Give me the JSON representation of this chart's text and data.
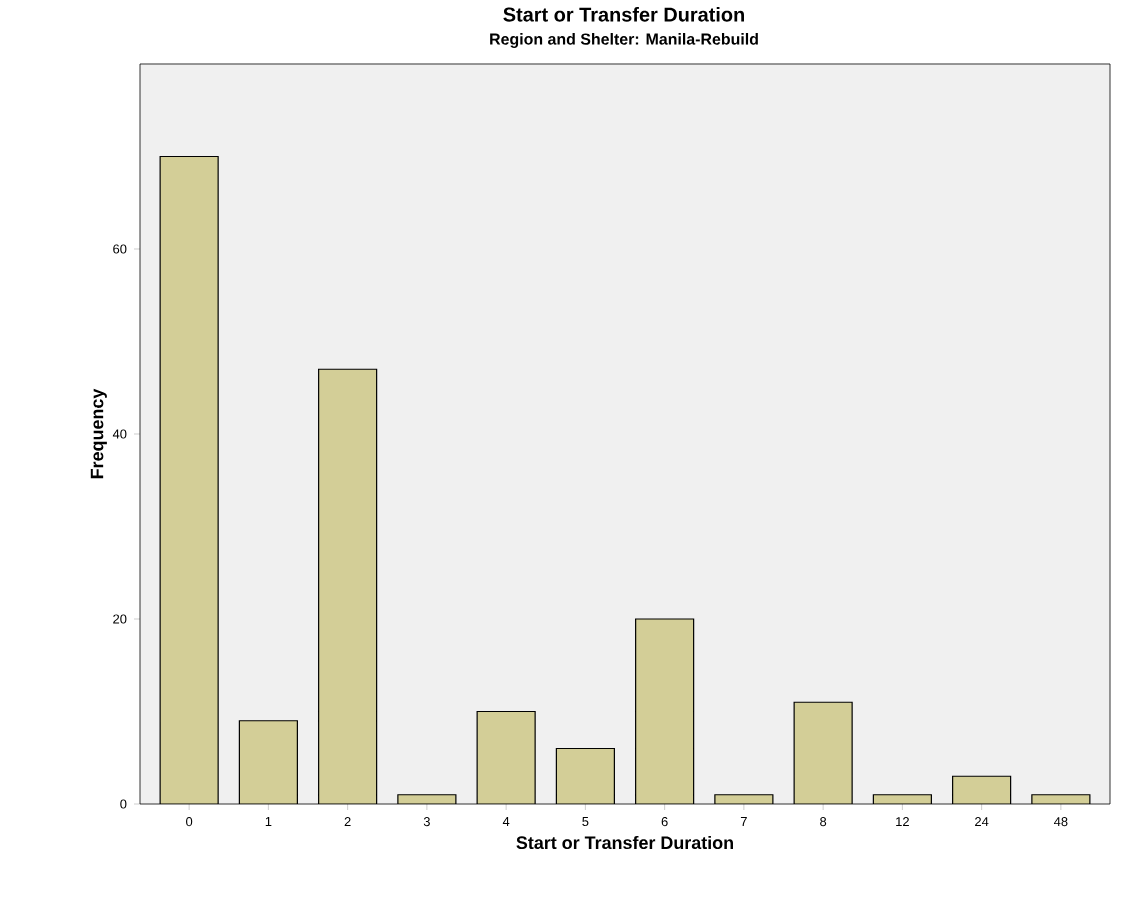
{
  "chart_data": {
    "type": "bar",
    "title": "Start or Transfer Duration",
    "subtitle": "Region and Shelter: Manila-Rebuild",
    "xlabel": "Start or Transfer Duration",
    "ylabel": "Frequency",
    "categories": [
      "0",
      "1",
      "2",
      "3",
      "4",
      "5",
      "6",
      "7",
      "8",
      "12",
      "24",
      "48"
    ],
    "values": [
      70,
      9,
      47,
      1,
      10,
      6,
      20,
      1,
      11,
      1,
      3,
      1
    ],
    "color": "#d3ce97",
    "ylim": [
      0,
      80
    ],
    "yticks": [
      0,
      20,
      40,
      60
    ],
    "grid": false
  }
}
